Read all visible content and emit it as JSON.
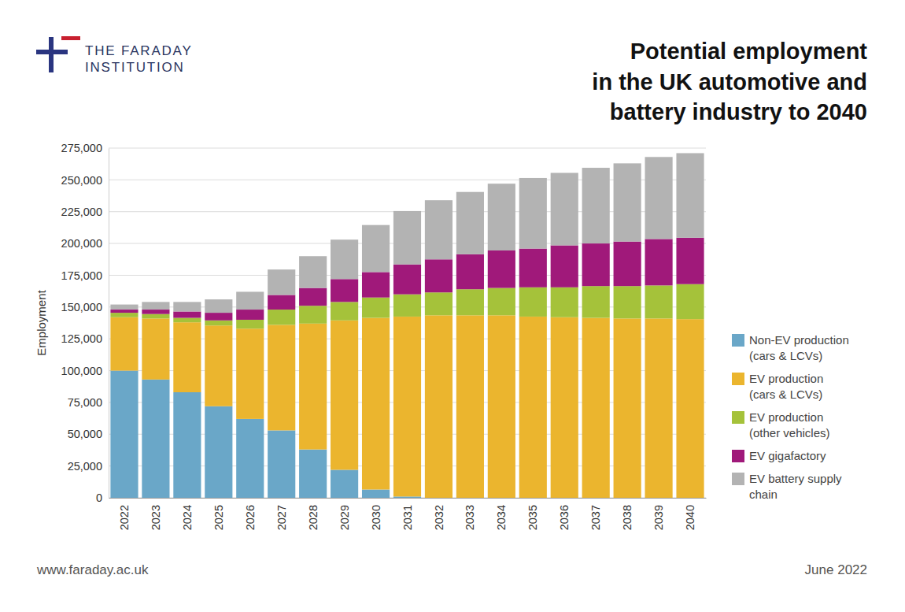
{
  "chart_data": {
    "type": "bar",
    "stacked": true,
    "title": "Potential employment\nin the UK automotive and\nbattery industry to 2040",
    "y_label": "Employment",
    "annotations": [
      "THE FARADAY",
      "INSTITUTION",
      "www.faraday.ac.uk",
      "June 2022"
    ],
    "categories": [
      "2022",
      "2023",
      "2024",
      "2025",
      "2026",
      "2027",
      "2028",
      "2029",
      "2030",
      "2031",
      "2032",
      "2033",
      "2034",
      "2035",
      "2036",
      "2037",
      "2038",
      "2039",
      "2040"
    ],
    "series": [
      {
        "name": "Non-EV production\n(cars & LCVs)",
        "color": "#6aa7c8",
        "values": [
          100000,
          93000,
          83000,
          72000,
          62000,
          53000,
          38000,
          22000,
          6500,
          1000,
          0,
          0,
          0,
          0,
          0,
          0,
          0,
          0,
          0
        ]
      },
      {
        "name": "EV production\n(cars & LCVs)",
        "color": "#ebb52e",
        "values": [
          42000,
          48000,
          55000,
          63500,
          71000,
          83000,
          99000,
          117500,
          135000,
          141500,
          143500,
          143500,
          143500,
          142500,
          142000,
          141500,
          141000,
          141000,
          140500
        ]
      },
      {
        "name": "EV production\n(other vehicles)",
        "color": "#a5c23a",
        "values": [
          3500,
          3500,
          3500,
          4000,
          7000,
          12000,
          14000,
          14500,
          16000,
          17500,
          18000,
          20500,
          21500,
          23000,
          23500,
          25000,
          25500,
          26000,
          27500
        ]
      },
      {
        "name": "EV gigafactory",
        "color": "#a0197a",
        "values": [
          2500,
          3500,
          5000,
          6000,
          8000,
          11500,
          14000,
          18000,
          20000,
          23500,
          26000,
          27500,
          29500,
          30500,
          33000,
          33500,
          35000,
          36500,
          36500
        ]
      },
      {
        "name": "EV battery supply\nchain",
        "color": "#b3b3b3",
        "values": [
          4000,
          6000,
          7500,
          10500,
          14000,
          20000,
          25000,
          31000,
          37000,
          42000,
          46500,
          49000,
          52500,
          55500,
          57000,
          59500,
          61500,
          64500,
          66500
        ]
      }
    ],
    "ylim": [
      0,
      275000
    ],
    "yticks": [
      0,
      {
        "value": 25000,
        "label": "25,000"
      },
      {
        "value": 50000,
        "label": "50,000"
      },
      {
        "value": 75000,
        "label": "75,000"
      },
      {
        "value": 100000,
        "label": "100,000"
      },
      {
        "value": 125000,
        "label": "125,000"
      },
      {
        "value": 150000,
        "label": "150,000"
      },
      {
        "value": 175000,
        "label": "175,000"
      },
      {
        "value": 200000,
        "label": "200,000"
      },
      {
        "value": 225000,
        "label": "225,000"
      },
      {
        "value": 250000,
        "label": "250,000"
      },
      {
        "value": 275000,
        "label": "275,000"
      }
    ],
    "grid": true,
    "legend": "right"
  }
}
